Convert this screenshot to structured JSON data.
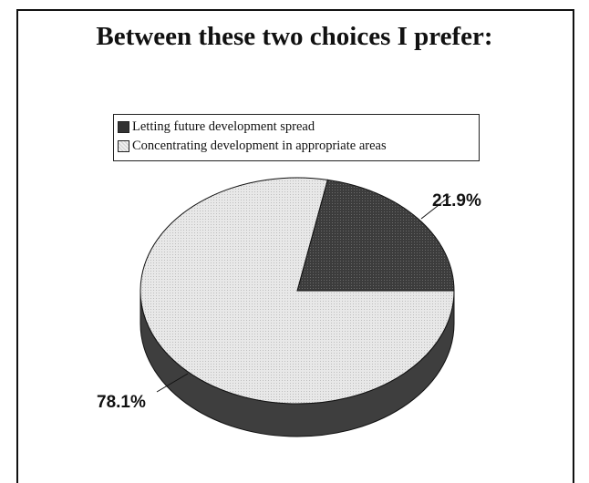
{
  "chart_data": {
    "type": "pie",
    "title": "Between these two choices I prefer:",
    "slices": [
      {
        "label": "Letting future development spread",
        "value": 21.9,
        "value_label": "21.9%",
        "color": "#3a3a3a"
      },
      {
        "label": "Concentrating development in appropriate areas",
        "value": 78.1,
        "value_label": "78.1%",
        "color": "#e4e4e4"
      }
    ],
    "legend_position": "top",
    "three_d": true
  }
}
